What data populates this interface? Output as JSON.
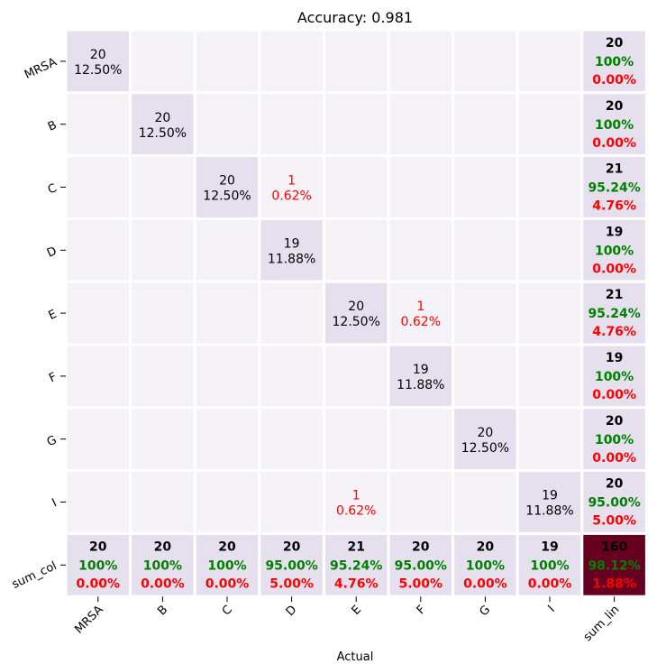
{
  "chart_data": {
    "type": "heatmap",
    "title": "Accuracy: 0.981",
    "xlabel": "Actual",
    "ylabel": "",
    "row_labels": [
      "MRSA",
      "B",
      "C",
      "D",
      "E",
      "F",
      "G",
      "I",
      "sum_col"
    ],
    "col_labels": [
      "MRSA",
      "B",
      "C",
      "D",
      "E",
      "F",
      "G",
      "I",
      "sum_lin"
    ],
    "cells": [
      [
        {
          "count": "20",
          "pct": "12.50%",
          "kind": "diag"
        },
        null,
        null,
        null,
        null,
        null,
        null,
        null,
        {
          "count": "20",
          "good": "100%",
          "bad": "0.00%",
          "kind": "sum"
        }
      ],
      [
        null,
        {
          "count": "20",
          "pct": "12.50%",
          "kind": "diag"
        },
        null,
        null,
        null,
        null,
        null,
        null,
        {
          "count": "20",
          "good": "100%",
          "bad": "0.00%",
          "kind": "sum"
        }
      ],
      [
        null,
        null,
        {
          "count": "20",
          "pct": "12.50%",
          "kind": "diag"
        },
        {
          "count": "1",
          "pct": "0.62%",
          "kind": "err"
        },
        null,
        null,
        null,
        null,
        {
          "count": "21",
          "good": "95.24%",
          "bad": "4.76%",
          "kind": "sum"
        }
      ],
      [
        null,
        null,
        null,
        {
          "count": "19",
          "pct": "11.88%",
          "kind": "diag"
        },
        null,
        null,
        null,
        null,
        {
          "count": "19",
          "good": "100%",
          "bad": "0.00%",
          "kind": "sum"
        }
      ],
      [
        null,
        null,
        null,
        null,
        {
          "count": "20",
          "pct": "12.50%",
          "kind": "diag"
        },
        {
          "count": "1",
          "pct": "0.62%",
          "kind": "err"
        },
        null,
        null,
        {
          "count": "21",
          "good": "95.24%",
          "bad": "4.76%",
          "kind": "sum"
        }
      ],
      [
        null,
        null,
        null,
        null,
        null,
        {
          "count": "19",
          "pct": "11.88%",
          "kind": "diag"
        },
        null,
        null,
        {
          "count": "19",
          "good": "100%",
          "bad": "0.00%",
          "kind": "sum"
        }
      ],
      [
        null,
        null,
        null,
        null,
        null,
        null,
        {
          "count": "20",
          "pct": "12.50%",
          "kind": "diag"
        },
        null,
        {
          "count": "20",
          "good": "100%",
          "bad": "0.00%",
          "kind": "sum"
        }
      ],
      [
        null,
        null,
        null,
        null,
        {
          "count": "1",
          "pct": "0.62%",
          "kind": "err"
        },
        null,
        null,
        {
          "count": "19",
          "pct": "11.88%",
          "kind": "diag"
        },
        {
          "count": "20",
          "good": "95.00%",
          "bad": "5.00%",
          "kind": "sum"
        }
      ],
      [
        {
          "count": "20",
          "good": "100%",
          "bad": "0.00%",
          "kind": "sum"
        },
        {
          "count": "20",
          "good": "100%",
          "bad": "0.00%",
          "kind": "sum"
        },
        {
          "count": "20",
          "good": "100%",
          "bad": "0.00%",
          "kind": "sum"
        },
        {
          "count": "20",
          "good": "95.00%",
          "bad": "5.00%",
          "kind": "sum"
        },
        {
          "count": "21",
          "good": "95.24%",
          "bad": "4.76%",
          "kind": "sum"
        },
        {
          "count": "20",
          "good": "95.00%",
          "bad": "5.00%",
          "kind": "sum"
        },
        {
          "count": "20",
          "good": "100%",
          "bad": "0.00%",
          "kind": "sum"
        },
        {
          "count": "19",
          "good": "100%",
          "bad": "0.00%",
          "kind": "sum"
        },
        {
          "count": "160",
          "good": "98.12%",
          "bad": "1.88%",
          "kind": "total"
        }
      ]
    ],
    "colors": {
      "empty": "#f4f1f7",
      "diag": "#e5dfee",
      "sum": "#e5dfee",
      "total": "#670020",
      "good_text": "#008000",
      "bad_text": "#ff0000",
      "err_text": "#ff0000",
      "grid_line": "#ffffff"
    }
  }
}
